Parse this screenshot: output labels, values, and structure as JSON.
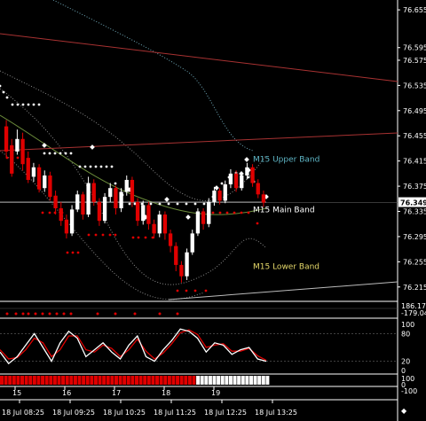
{
  "chart_data": {
    "type": "line",
    "instrument_panel": "price",
    "y_ticks": [
      "76.655",
      "76.595",
      "76.575",
      "76.535",
      "76.495",
      "76.455",
      "76.415",
      "76.375",
      "76.335",
      "76.295",
      "76.255",
      "76.215"
    ],
    "current_price": "76.349",
    "ylim": [
      76.195,
      76.665
    ],
    "candles": [
      {
        "o": 76.47,
        "c": 76.43,
        "h": 76.48,
        "l": 76.42,
        "up": false
      },
      {
        "o": 76.44,
        "c": 76.395,
        "h": 76.45,
        "l": 76.39,
        "up": false
      },
      {
        "o": 76.43,
        "c": 76.45,
        "h": 76.465,
        "l": 76.425,
        "up": true
      },
      {
        "o": 76.45,
        "c": 76.41,
        "h": 76.46,
        "l": 76.4,
        "up": false
      },
      {
        "o": 76.42,
        "c": 76.385,
        "h": 76.43,
        "l": 76.38,
        "up": false
      },
      {
        "o": 76.39,
        "c": 76.405,
        "h": 76.412,
        "l": 76.382,
        "up": true
      },
      {
        "o": 76.405,
        "c": 76.37,
        "h": 76.41,
        "l": 76.365,
        "up": false
      },
      {
        "o": 76.372,
        "c": 76.392,
        "h": 76.4,
        "l": 76.366,
        "up": true
      },
      {
        "o": 76.392,
        "c": 76.358,
        "h": 76.398,
        "l": 76.352,
        "up": false
      },
      {
        "o": 76.36,
        "c": 76.34,
        "h": 76.368,
        "l": 76.33,
        "up": false
      },
      {
        "o": 76.34,
        "c": 76.32,
        "h": 76.35,
        "l": 76.312,
        "up": false
      },
      {
        "o": 76.322,
        "c": 76.3,
        "h": 76.33,
        "l": 76.292,
        "up": false
      },
      {
        "o": 76.3,
        "c": 76.338,
        "h": 76.345,
        "l": 76.296,
        "up": true
      },
      {
        "o": 76.338,
        "c": 76.362,
        "h": 76.368,
        "l": 76.334,
        "up": true
      },
      {
        "o": 76.362,
        "c": 76.33,
        "h": 76.366,
        "l": 76.322,
        "up": false
      },
      {
        "o": 76.33,
        "c": 76.38,
        "h": 76.39,
        "l": 76.326,
        "up": true
      },
      {
        "o": 76.38,
        "c": 76.35,
        "h": 76.386,
        "l": 76.344,
        "up": false
      },
      {
        "o": 76.35,
        "c": 76.32,
        "h": 76.356,
        "l": 76.312,
        "up": false
      },
      {
        "o": 76.32,
        "c": 76.358,
        "h": 76.364,
        "l": 76.316,
        "up": true
      },
      {
        "o": 76.358,
        "c": 76.372,
        "h": 76.38,
        "l": 76.35,
        "up": true
      },
      {
        "o": 76.372,
        "c": 76.34,
        "h": 76.376,
        "l": 76.33,
        "up": false
      },
      {
        "o": 76.34,
        "c": 76.366,
        "h": 76.372,
        "l": 76.334,
        "up": true
      },
      {
        "o": 76.366,
        "c": 76.385,
        "h": 76.392,
        "l": 76.36,
        "up": true
      },
      {
        "o": 76.385,
        "c": 76.35,
        "h": 76.39,
        "l": 76.342,
        "up": false
      },
      {
        "o": 76.35,
        "c": 76.32,
        "h": 76.356,
        "l": 76.312,
        "up": false
      },
      {
        "o": 76.32,
        "c": 76.345,
        "h": 76.352,
        "l": 76.314,
        "up": true
      },
      {
        "o": 76.345,
        "c": 76.315,
        "h": 76.35,
        "l": 76.306,
        "up": false
      },
      {
        "o": 76.315,
        "c": 76.3,
        "h": 76.322,
        "l": 76.292,
        "up": false
      },
      {
        "o": 76.3,
        "c": 76.33,
        "h": 76.336,
        "l": 76.294,
        "up": true
      },
      {
        "o": 76.33,
        "c": 76.3,
        "h": 76.335,
        "l": 76.29,
        "up": false
      },
      {
        "o": 76.3,
        "c": 76.28,
        "h": 76.306,
        "l": 76.27,
        "up": false
      },
      {
        "o": 76.28,
        "c": 76.25,
        "h": 76.286,
        "l": 76.24,
        "up": false
      },
      {
        "o": 76.25,
        "c": 76.232,
        "h": 76.256,
        "l": 76.222,
        "up": false
      },
      {
        "o": 76.232,
        "c": 76.27,
        "h": 76.276,
        "l": 76.226,
        "up": true
      },
      {
        "o": 76.27,
        "c": 76.3,
        "h": 76.306,
        "l": 76.266,
        "up": true
      },
      {
        "o": 76.3,
        "c": 76.335,
        "h": 76.34,
        "l": 76.296,
        "up": true
      },
      {
        "o": 76.335,
        "c": 76.315,
        "h": 76.34,
        "l": 76.306,
        "up": false
      },
      {
        "o": 76.315,
        "c": 76.35,
        "h": 76.356,
        "l": 76.31,
        "up": true
      },
      {
        "o": 76.35,
        "c": 76.368,
        "h": 76.374,
        "l": 76.344,
        "up": true
      },
      {
        "o": 76.368,
        "c": 76.352,
        "h": 76.372,
        "l": 76.346,
        "up": false
      },
      {
        "o": 76.352,
        "c": 76.378,
        "h": 76.384,
        "l": 76.348,
        "up": true
      },
      {
        "o": 76.378,
        "c": 76.395,
        "h": 76.402,
        "l": 76.372,
        "up": true
      },
      {
        "o": 76.395,
        "c": 76.372,
        "h": 76.4,
        "l": 76.366,
        "up": false
      },
      {
        "o": 76.372,
        "c": 76.392,
        "h": 76.398,
        "l": 76.368,
        "up": true
      },
      {
        "o": 76.392,
        "c": 76.405,
        "h": 76.412,
        "l": 76.386,
        "up": true
      },
      {
        "o": 76.405,
        "c": 76.38,
        "h": 76.41,
        "l": 76.374,
        "up": false
      },
      {
        "o": 76.38,
        "c": 76.362,
        "h": 76.386,
        "l": 76.356,
        "up": false
      },
      {
        "o": 76.362,
        "c": 76.349,
        "h": 76.368,
        "l": 76.342,
        "up": false
      }
    ],
    "band_labels": [
      {
        "text": "M15 Upper Band",
        "color": "#5fb7c7",
        "price": 76.418
      },
      {
        "text": "M15 Main Band",
        "color": "#ffffff",
        "price": 76.338
      },
      {
        "text": "M15 Lower Band",
        "color": "#e6d96a",
        "price": 76.248
      }
    ],
    "trendlines_color": "#a83232",
    "oscillator": {
      "levels": [
        "80",
        "100",
        "20",
        "0"
      ],
      "white_line": [
        40,
        15,
        30,
        55,
        80,
        50,
        20,
        60,
        85,
        70,
        30,
        45,
        60,
        40,
        25,
        55,
        75,
        30,
        20,
        45,
        65,
        90,
        85,
        70,
        40,
        60,
        55,
        35,
        45,
        50,
        25,
        20
      ],
      "red_line": [
        45,
        25,
        28,
        45,
        70,
        60,
        30,
        45,
        75,
        75,
        45,
        40,
        55,
        48,
        30,
        45,
        68,
        42,
        25,
        38,
        58,
        82,
        88,
        78,
        50,
        55,
        58,
        42,
        42,
        48,
        32,
        22
      ]
    },
    "mini_panel": {
      "values": [
        "186.178",
        "-179.042"
      ]
    },
    "histogram": {
      "red_count": 48,
      "white_count": 18,
      "labels": [
        "100",
        "0",
        "-100"
      ]
    },
    "x_labels": [
      "18 Jul 08:25",
      "18 Jul 09:25",
      "18 Jul 10:25",
      "18 Jul 11:25",
      "18 Jul 12:25",
      "18 Jul 13:25"
    ],
    "session_labels": [
      "15",
      "16",
      "17",
      "18",
      "19"
    ]
  }
}
